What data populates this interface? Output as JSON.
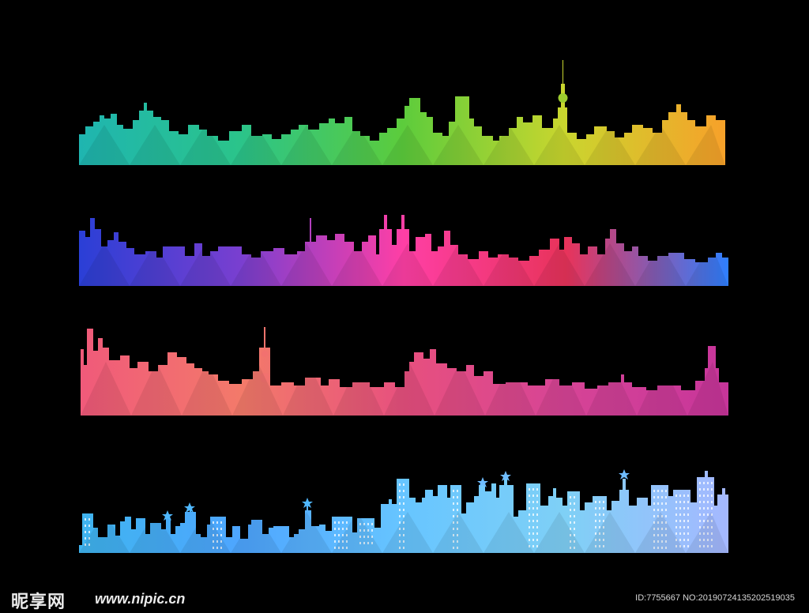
{
  "watermark": {
    "logo": "昵享网",
    "url": "www.nipic.cn",
    "id_text": "ID:7755667 NO:20190724135202519035"
  },
  "banners": [
    {
      "name": "rainbow-skyline",
      "colors": [
        "#1fb5b0",
        "#2bc48a",
        "#5ccc3c",
        "#c9d62e",
        "#f7a12a"
      ]
    },
    {
      "name": "blue-pink-skyline",
      "colors": [
        "#2a3fd6",
        "#7a3fd0",
        "#ff3fa5",
        "#e8335a",
        "#2f7fff"
      ]
    },
    {
      "name": "pink-red-skyline",
      "colors": [
        "#f05a7a",
        "#f37a6a",
        "#e7507e",
        "#d64496",
        "#c7359a"
      ]
    },
    {
      "name": "blue-buildings-skyline",
      "colors": [
        "#3fb4ef",
        "#4ea6ff",
        "#67c5ff",
        "#7fd0f6",
        "#a5b8ff"
      ]
    }
  ]
}
